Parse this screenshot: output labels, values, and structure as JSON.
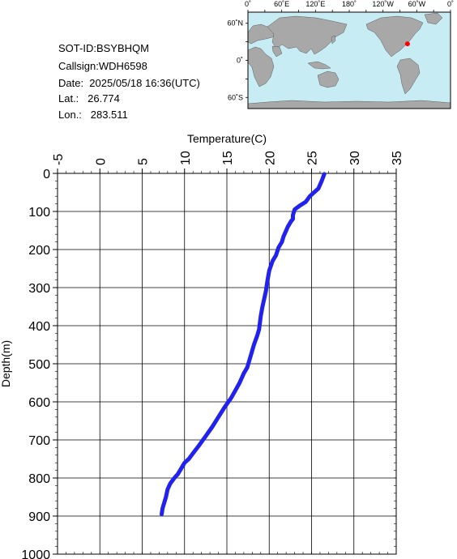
{
  "info": {
    "sot_id": "SOT-ID:BSYBHQM",
    "callsign": "Callsign:WDH6598",
    "date": "Date:  2025/05/18 16:36(UTC)",
    "lat": "Lat.:   26.774",
    "lon": "Lon.:   283.511"
  },
  "map": {
    "lon_labels": [
      "0˚",
      "60˚E",
      "120˚E",
      "180˚",
      "120˚W",
      "60˚W",
      "0˚"
    ],
    "lat_labels": [
      "60˚N",
      "0˚",
      "60˚S"
    ],
    "ocean_color": "#c8ecf4",
    "land_color": "#a8a8a8",
    "marker_color": "#ff0000",
    "marker": {
      "lon": 283.511,
      "lat": 26.774
    }
  },
  "chart_data": {
    "type": "line",
    "xlabel": "Temperature(C)",
    "ylabel": "Depth(m)",
    "xlim": [
      -5,
      35
    ],
    "ylim": [
      0,
      1000
    ],
    "y_inverted": true,
    "x_ticks": [
      -5,
      0,
      5,
      10,
      15,
      20,
      25,
      30,
      35
    ],
    "y_ticks": [
      0,
      100,
      200,
      300,
      400,
      500,
      600,
      700,
      800,
      900,
      1000
    ],
    "grid": true,
    "line_color": "#2222ee",
    "series": [
      {
        "x": [
          26.5,
          26.2,
          25.8,
          25.3,
          24.8,
          24.3,
          23.6,
          23.0,
          22.8,
          22.8,
          22.6,
          22.2,
          22.0,
          21.7,
          21.5,
          21.1,
          20.8,
          20.4,
          20.0,
          19.8,
          19.6,
          19.4,
          19.2,
          19.0,
          18.8,
          18.6,
          18.2,
          17.8,
          17.4,
          17.0,
          16.5,
          16.0,
          15.5,
          14.7,
          14.0,
          13.3,
          12.5,
          11.7,
          11.0,
          10.5,
          10.0,
          9.6,
          9.2,
          8.8,
          8.3,
          8.0,
          7.8,
          7.6,
          7.4,
          7.3
        ],
        "y": [
          2,
          20,
          40,
          50,
          60,
          75,
          85,
          95,
          110,
          120,
          125,
          140,
          150,
          165,
          180,
          195,
          215,
          230,
          255,
          280,
          310,
          330,
          350,
          375,
          410,
          425,
          450,
          480,
          510,
          525,
          550,
          570,
          590,
          615,
          640,
          665,
          690,
          715,
          735,
          750,
          760,
          775,
          790,
          800,
          815,
          830,
          850,
          865,
          880,
          895
        ]
      }
    ]
  }
}
